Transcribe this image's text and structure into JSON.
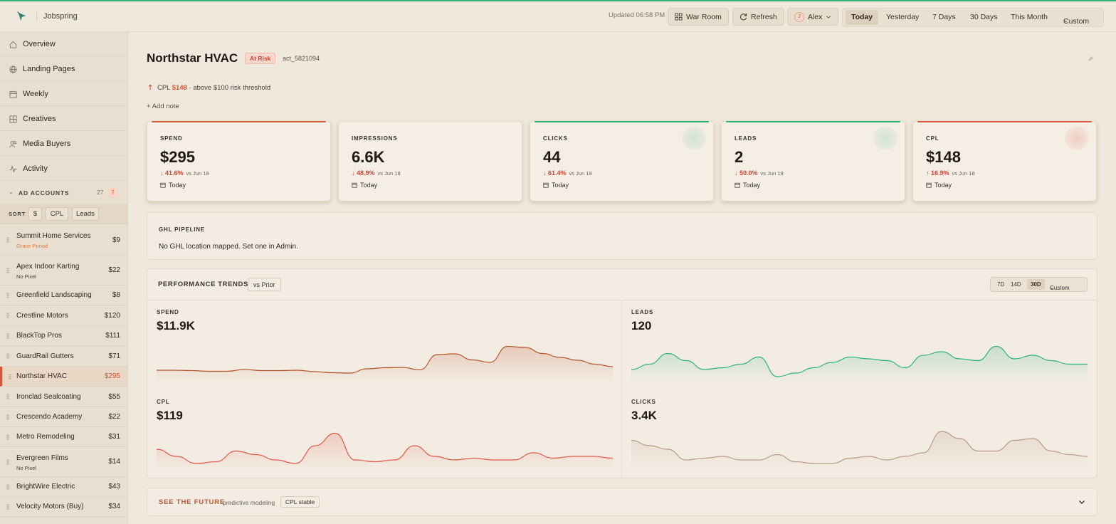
{
  "app": {
    "brand": "Jobspring",
    "updated": "Updated 06:58 PM",
    "war_room": "War Room",
    "refresh": "Refresh",
    "user": {
      "initial": "J",
      "name": "Alex"
    },
    "ranges": [
      "Today",
      "Yesterday",
      "7 Days",
      "30 Days",
      "This Month",
      "Custom"
    ],
    "active_range": "Today"
  },
  "sidebar": {
    "nav": [
      {
        "label": "Overview",
        "icon": "home-icon"
      },
      {
        "label": "Landing Pages",
        "icon": "globe-icon"
      },
      {
        "label": "Weekly",
        "icon": "calendar-icon"
      },
      {
        "label": "Creatives",
        "icon": "grid-icon"
      },
      {
        "label": "Media Buyers",
        "icon": "users-icon"
      },
      {
        "label": "Activity",
        "icon": "pulse-icon"
      }
    ],
    "accounts_title": "AD ACCOUNTS",
    "accounts_count": "27",
    "accounts_alerts": "7",
    "sort_label": "SORT",
    "sort_options": [
      "$",
      "CPL",
      "Leads"
    ],
    "accounts": [
      {
        "name": "Summit Home Services",
        "sub": "Grace Period",
        "value": "$9"
      },
      {
        "name": "Apex Indoor Karting",
        "sub": "No Pixel",
        "value": "$22"
      },
      {
        "name": "Greenfield Landscaping",
        "sub": "",
        "value": "$8"
      },
      {
        "name": "Crestline Motors",
        "sub": "",
        "value": "$120"
      },
      {
        "name": "BlackTop Pros",
        "sub": "",
        "value": "$111"
      },
      {
        "name": "GuardRail Gutters",
        "sub": "",
        "value": "$71"
      },
      {
        "name": "Northstar HVAC",
        "sub": "",
        "value": "$295"
      },
      {
        "name": "Ironclad Sealcoating",
        "sub": "",
        "value": "$55"
      },
      {
        "name": "Crescendo Academy",
        "sub": "",
        "value": "$22"
      },
      {
        "name": "Metro Remodeling",
        "sub": "",
        "value": "$31"
      },
      {
        "name": "Evergreen Films",
        "sub": "No Pixel",
        "value": "$14"
      },
      {
        "name": "BrightWire Electric",
        "sub": "",
        "value": "$43"
      },
      {
        "name": "Velocity Motors (Buy)",
        "sub": "",
        "value": "$34"
      }
    ]
  },
  "account": {
    "name": "Northstar HVAC",
    "status": "At Risk",
    "id": "act_5821094",
    "alert_metric": "CPL",
    "alert_value": "$148",
    "alert_text": "· above $100 risk threshold",
    "add_note": "+ Add note"
  },
  "kpis": [
    {
      "label": "SPEND",
      "value": "$295",
      "change": "↓ 41.6%",
      "compare": "vs Jun 18",
      "period": "Today",
      "color": "#d9603a"
    },
    {
      "label": "IMPRESSIONS",
      "value": "6.6K",
      "change": "↓ 48.9%",
      "compare": "vs Jun 18",
      "period": "Today",
      "color": "#efe4d4"
    },
    {
      "label": "CLICKS",
      "value": "44",
      "change": "↓ 61.4%",
      "compare": "vs Jun 18",
      "period": "Today",
      "color": "#2fb478"
    },
    {
      "label": "LEADS",
      "value": "2",
      "change": "↓ 50.0%",
      "compare": "vs Jun 18",
      "period": "Today",
      "color": "#2fb478"
    },
    {
      "label": "CPL",
      "value": "$148",
      "change": "↑ 16.9%",
      "compare": "vs Jun 18",
      "period": "Today",
      "color": "#e05a4a"
    }
  ],
  "pipeline": {
    "title": "GHL PIPELINE",
    "message": "No GHL location mapped. Set one in Admin."
  },
  "trends": {
    "title": "PERFORMANCE TRENDS",
    "compare": "vs Prior",
    "ranges": [
      "7D",
      "14D",
      "30D",
      "Custom"
    ],
    "active_range": "30D",
    "charts": [
      {
        "label": "SPEND",
        "total": "$11.9K",
        "color": "#b5562c",
        "values": [
          0.28,
          0.28,
          0.27,
          0.25,
          0.25,
          0.3,
          0.27,
          0.27,
          0.28,
          0.24,
          0.21,
          0.2,
          0.32,
          0.35,
          0.36,
          0.29,
          0.72,
          0.74,
          0.57,
          0.5,
          0.95,
          0.92,
          0.75,
          0.64,
          0.56,
          0.45,
          0.38
        ]
      },
      {
        "label": "LEADS",
        "total": "120",
        "color": "#2fb478",
        "values": [
          0.3,
          0.45,
          0.75,
          0.55,
          0.3,
          0.35,
          0.45,
          0.65,
          0.1,
          0.2,
          0.35,
          0.5,
          0.65,
          0.6,
          0.55,
          0.35,
          0.7,
          0.8,
          0.6,
          0.55,
          0.95,
          0.6,
          0.7,
          0.55,
          0.45,
          0.45
        ]
      },
      {
        "label": "CPL",
        "total": "$119",
        "color": "#e05a4a",
        "values": [
          0.5,
          0.3,
          0.1,
          0.15,
          0.45,
          0.35,
          0.2,
          0.1,
          0.6,
          0.95,
          0.2,
          0.15,
          0.2,
          0.6,
          0.3,
          0.2,
          0.25,
          0.2,
          0.2,
          0.4,
          0.25,
          0.3,
          0.3,
          0.25
        ]
      },
      {
        "label": "CLICKS",
        "total": "3.4K",
        "color": "#b99a8c",
        "values": [
          0.75,
          0.6,
          0.5,
          0.2,
          0.25,
          0.3,
          0.2,
          0.2,
          0.35,
          0.15,
          0.1,
          0.1,
          0.25,
          0.3,
          0.2,
          0.3,
          0.4,
          1.0,
          0.8,
          0.45,
          0.45,
          0.75,
          0.8,
          0.45,
          0.35,
          0.3
        ]
      }
    ]
  },
  "future": {
    "title": "SEE THE FUTURE",
    "subtitle": "predictive modeling",
    "tag": "CPL stable"
  }
}
